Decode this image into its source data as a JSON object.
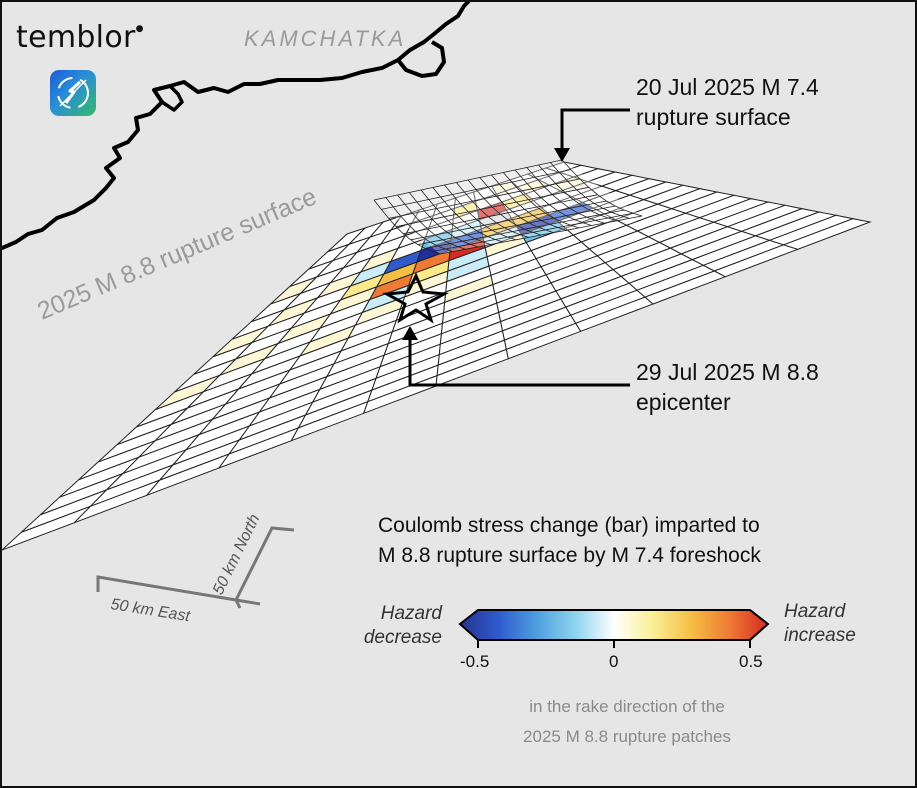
{
  "brand": {
    "name": "temblor",
    "logo_icon": "temblor-logo-icon"
  },
  "region_label": "KAMCHATKA",
  "surface_label": "2025 M 8.8 rupture surface",
  "annotations": {
    "foreshock": {
      "line1": "20 Jul 2025 M 7.4",
      "line2": "rupture surface"
    },
    "epicenter": {
      "line1": "29 Jul 2025 M 8.8",
      "line2": "epicenter"
    }
  },
  "legend": {
    "title_line1": "Coulomb stress change (bar) imparted to",
    "title_line2": "M 8.8 rupture surface by M 7.4 foreshock",
    "left_label_line1": "Hazard",
    "left_label_line2": "decrease",
    "right_label_line1": "Hazard",
    "right_label_line2": "increase",
    "ticks": [
      "-0.5",
      "0",
      "0.5"
    ],
    "note_line1": "in the rake direction of the",
    "note_line2": "2025 M 8.8 rupture patches",
    "colormap": [
      "#26328f",
      "#2f5bcd",
      "#4f9fdf",
      "#8dd4ef",
      "#ffffff",
      "#fbef96",
      "#f5bf45",
      "#ee7a34",
      "#d52b24"
    ]
  },
  "scale_bar": {
    "east": "50 km East",
    "north": "50 km North"
  },
  "colors": {
    "background": "#e6e6e6",
    "coastline": "#000000",
    "grid_line": "#222222",
    "annotation_line": "#000000"
  }
}
